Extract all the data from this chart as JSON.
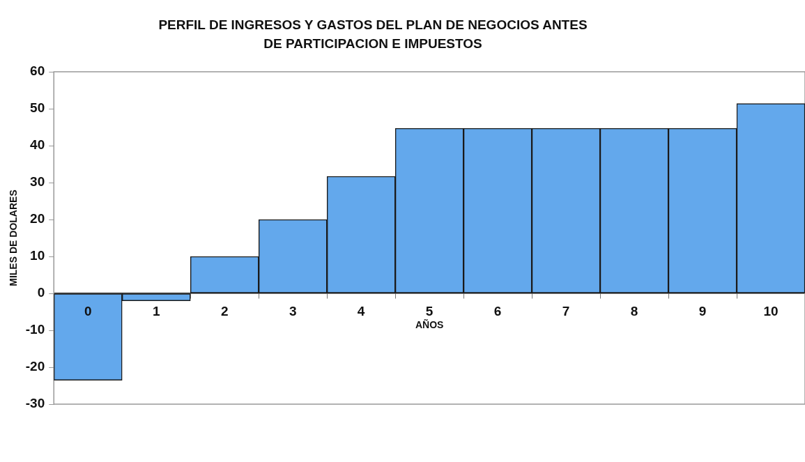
{
  "chart_data": {
    "type": "bar",
    "title": "PERFIL DE INGRESOS Y GASTOS DEL PLAN DE NEGOCIOS ANTES DE PARTICIPACION E IMPUESTOS",
    "xlabel": "AÑOS",
    "ylabel": "MILES DE DOLARES",
    "categories": [
      "0",
      "1",
      "2",
      "3",
      "4",
      "5",
      "6",
      "7",
      "8",
      "9",
      "10"
    ],
    "values": [
      -23.5,
      -2,
      10,
      20,
      31.7,
      44.7,
      44.7,
      44.7,
      44.7,
      44.7,
      51.4
    ],
    "color": "#63a8ec",
    "ylim": [
      -30,
      60
    ],
    "yticks": [
      -30,
      -20,
      -10,
      0,
      10,
      20,
      30,
      40,
      50,
      60
    ],
    "grid": false,
    "legend": false
  }
}
